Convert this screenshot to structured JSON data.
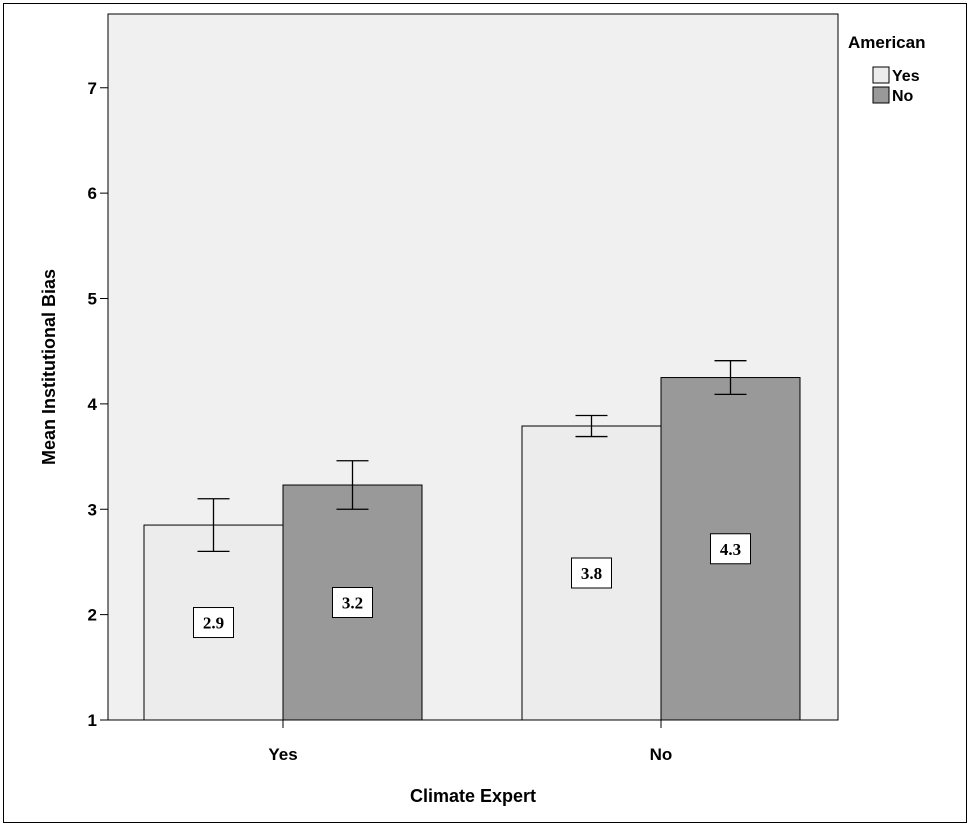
{
  "chart_data": {
    "type": "bar",
    "categories": [
      "Yes",
      "No"
    ],
    "series": [
      {
        "name": "Yes",
        "values": [
          2.85,
          3.79
        ],
        "errors": [
          [
            2.6,
            3.1
          ],
          [
            3.69,
            3.89
          ]
        ],
        "labels": [
          "2.9",
          "3.8"
        ],
        "color": "#ececec"
      },
      {
        "name": "No",
        "values": [
          3.23,
          4.25
        ],
        "errors": [
          [
            3.0,
            3.46
          ],
          [
            4.09,
            4.41
          ]
        ],
        "labels": [
          "3.2",
          "4.3"
        ],
        "color": "#999999"
      }
    ],
    "xlabel": "Climate Expert",
    "ylabel": "Mean Institutional Bias",
    "ylim": [
      1,
      7.7
    ],
    "yticks": [
      1,
      2,
      3,
      4,
      5,
      6,
      7
    ],
    "legend": {
      "title": "American",
      "placement": "top-right outside"
    },
    "plot_background": "#f0f0f0",
    "grid": false
  }
}
